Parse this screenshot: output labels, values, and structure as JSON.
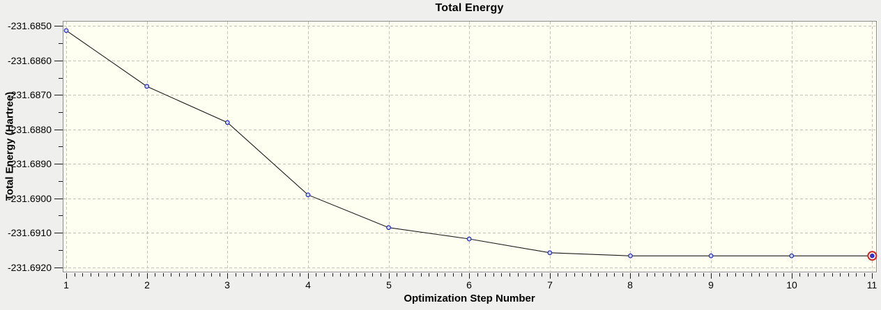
{
  "window": {
    "background_color": "#efefed"
  },
  "chart_data": {
    "type": "line",
    "title": "Total Energy",
    "xlabel": "Optimization Step Number",
    "ylabel": "Total Energy (Hartree)",
    "x": [
      1,
      2,
      3,
      4,
      5,
      6,
      7,
      8,
      9,
      10,
      11
    ],
    "values": [
      -231.68513,
      -231.68675,
      -231.6878,
      -231.6899,
      -231.69085,
      -231.69118,
      -231.69158,
      -231.69167,
      -231.69167,
      -231.69167,
      -231.69167
    ],
    "series_name": "Total Energy",
    "xlim": [
      0.9567,
      11.0487
    ],
    "ylim": [
      -231.69213,
      -231.68485
    ],
    "x_ticks": [
      1,
      2,
      3,
      4,
      5,
      6,
      7,
      8,
      9,
      10,
      11
    ],
    "x_tick_labels": [
      "1",
      "2",
      "3",
      "4",
      "5",
      "6",
      "7",
      "8",
      "9",
      "10",
      "11"
    ],
    "x_minor_divisions": 10,
    "y_ticks": [
      -231.685,
      -231.686,
      -231.687,
      -231.688,
      -231.689,
      -231.69,
      -231.691,
      -231.692
    ],
    "y_tick_labels": [
      "-231.6850",
      "-231.6860",
      "-231.6870",
      "-231.6880",
      "-231.6890",
      "-231.6900",
      "-231.6910",
      "-231.6920"
    ],
    "y_minor_divisions": 2,
    "grid": "dashed",
    "legend": "none",
    "highlighted_point_index": 10,
    "style": {
      "plot_bg": "#fffff1",
      "frame_color": "#8c8c8c",
      "frame_highlight": "#ffffff",
      "grid_color": "#c3c3b8",
      "line_color": "#1a1a1a",
      "marker_stroke": "#2929b8",
      "marker_fill": "#ccd8f6",
      "selected_ring_color": "#d02424",
      "selected_fill": "#3535cc",
      "tick_color": "#1a1a1a",
      "tick_label_color": "#000000"
    }
  }
}
